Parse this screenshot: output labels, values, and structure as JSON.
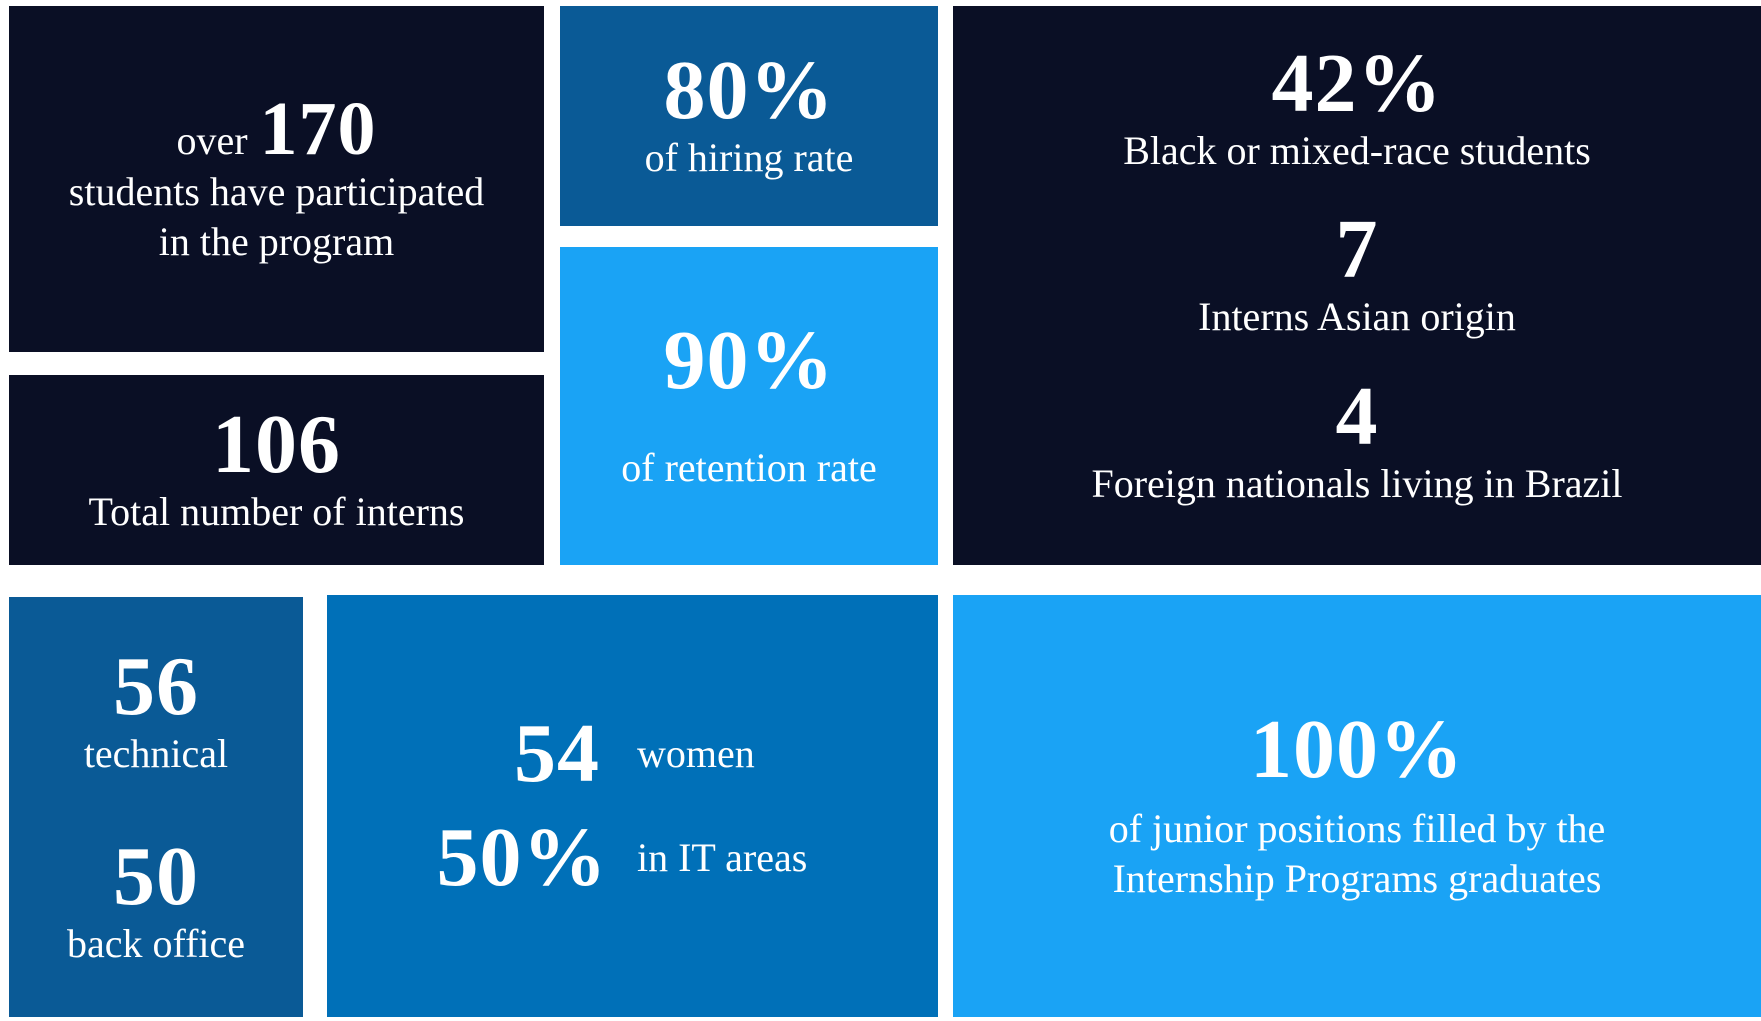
{
  "tiles": [
    {
      "prefix": "over",
      "number": "170",
      "lines": [
        "students have participated",
        "in the program"
      ]
    },
    {
      "number": "106",
      "lines": [
        "Total number of interns"
      ]
    },
    {
      "number": "80%",
      "lines": [
        "of hiring rate"
      ]
    },
    {
      "number": "90%",
      "lines": [
        "of retention rate"
      ]
    },
    {
      "items": [
        {
          "number": "42%",
          "label": "Black or mixed-race students"
        },
        {
          "number": "7",
          "label": "Interns Asian origin"
        },
        {
          "number": "4",
          "label": "Foreign nationals living in Brazil"
        }
      ]
    },
    {
      "items": [
        {
          "number": "56",
          "label": "technical"
        },
        {
          "number": "50",
          "label": "back office"
        }
      ]
    },
    {
      "items": [
        {
          "number": "54",
          "label": "women"
        },
        {
          "number": "50%",
          "label": "in IT areas"
        }
      ]
    },
    {
      "number": "100%",
      "lines": [
        "of junior positions filled by the",
        "Internship Programs graduates"
      ]
    }
  ]
}
